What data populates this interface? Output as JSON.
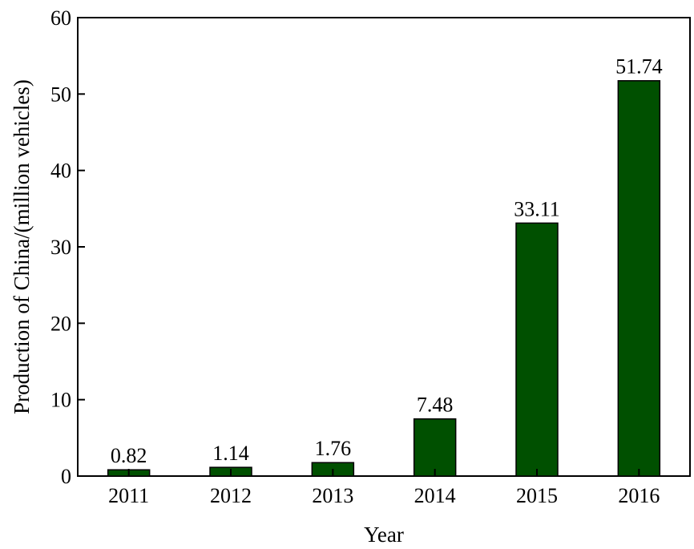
{
  "chart_data": {
    "type": "bar",
    "categories": [
      "2011",
      "2012",
      "2013",
      "2014",
      "2015",
      "2016"
    ],
    "values": [
      0.82,
      1.14,
      1.76,
      7.48,
      33.11,
      51.74
    ],
    "data_labels": [
      "0.82",
      "1.14",
      "1.76",
      "7.48",
      "33.11",
      "51.74"
    ],
    "xlabel": "Year",
    "ylabel": "Production of China/(million vehicles)",
    "ylim": [
      0,
      60
    ],
    "yticks": [
      0,
      10,
      20,
      30,
      40,
      50,
      60
    ],
    "grid": false,
    "legend": "none",
    "bar_color": "#005000",
    "bar_edge_color": "#000000"
  }
}
